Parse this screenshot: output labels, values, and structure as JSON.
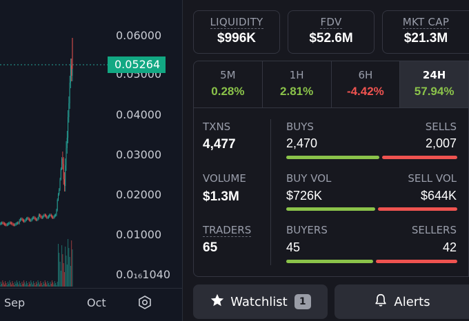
{
  "chart": {
    "y_ticks": [
      "0.06000",
      "0.05000",
      "0.04000",
      "0.03000",
      "0.02000",
      "0.01000",
      "0.0₁₆1040"
    ],
    "current_price": "0.05264",
    "x_labels": [
      "Sep",
      "Oct"
    ],
    "colors": {
      "up": "#26a69a",
      "down": "#ef5350",
      "price_tag": "#12a883"
    }
  },
  "cards": [
    {
      "label": "LIQUIDITY",
      "value": "$996K"
    },
    {
      "label": "FDV",
      "value": "$52.6M"
    },
    {
      "label": "MKT CAP",
      "value": "$21.3M"
    }
  ],
  "timeframes": [
    {
      "label": "5M",
      "value": "0.28%",
      "color": "#8bc34a"
    },
    {
      "label": "1H",
      "value": "2.81%",
      "color": "#8bc34a"
    },
    {
      "label": "6H",
      "value": "-4.42%",
      "color": "#ef5350"
    },
    {
      "label": "24H",
      "value": "57.94%",
      "color": "#8bc34a"
    }
  ],
  "stats": {
    "txns": {
      "label": "TXNS",
      "value": "4,477"
    },
    "volume": {
      "label": "VOLUME",
      "value": "$1.3M"
    },
    "traders": {
      "label": "TRADERS",
      "value": "65"
    },
    "buys": {
      "label": "BUYS",
      "value": "2,470",
      "share": 0.552
    },
    "sells": {
      "label": "SELLS",
      "value": "2,007"
    },
    "buy_vol": {
      "label": "BUY VOL",
      "value": "$726K",
      "share": 0.53
    },
    "sell_vol": {
      "label": "SELL VOL",
      "value": "$644K"
    },
    "buyers": {
      "label": "BUYERS",
      "value": "45",
      "share": 0.517
    },
    "sellers": {
      "label": "SELLERS",
      "value": "42"
    }
  },
  "buttons": {
    "watchlist": {
      "label": "Watchlist",
      "count": "1"
    },
    "alerts": {
      "label": "Alerts"
    }
  }
}
